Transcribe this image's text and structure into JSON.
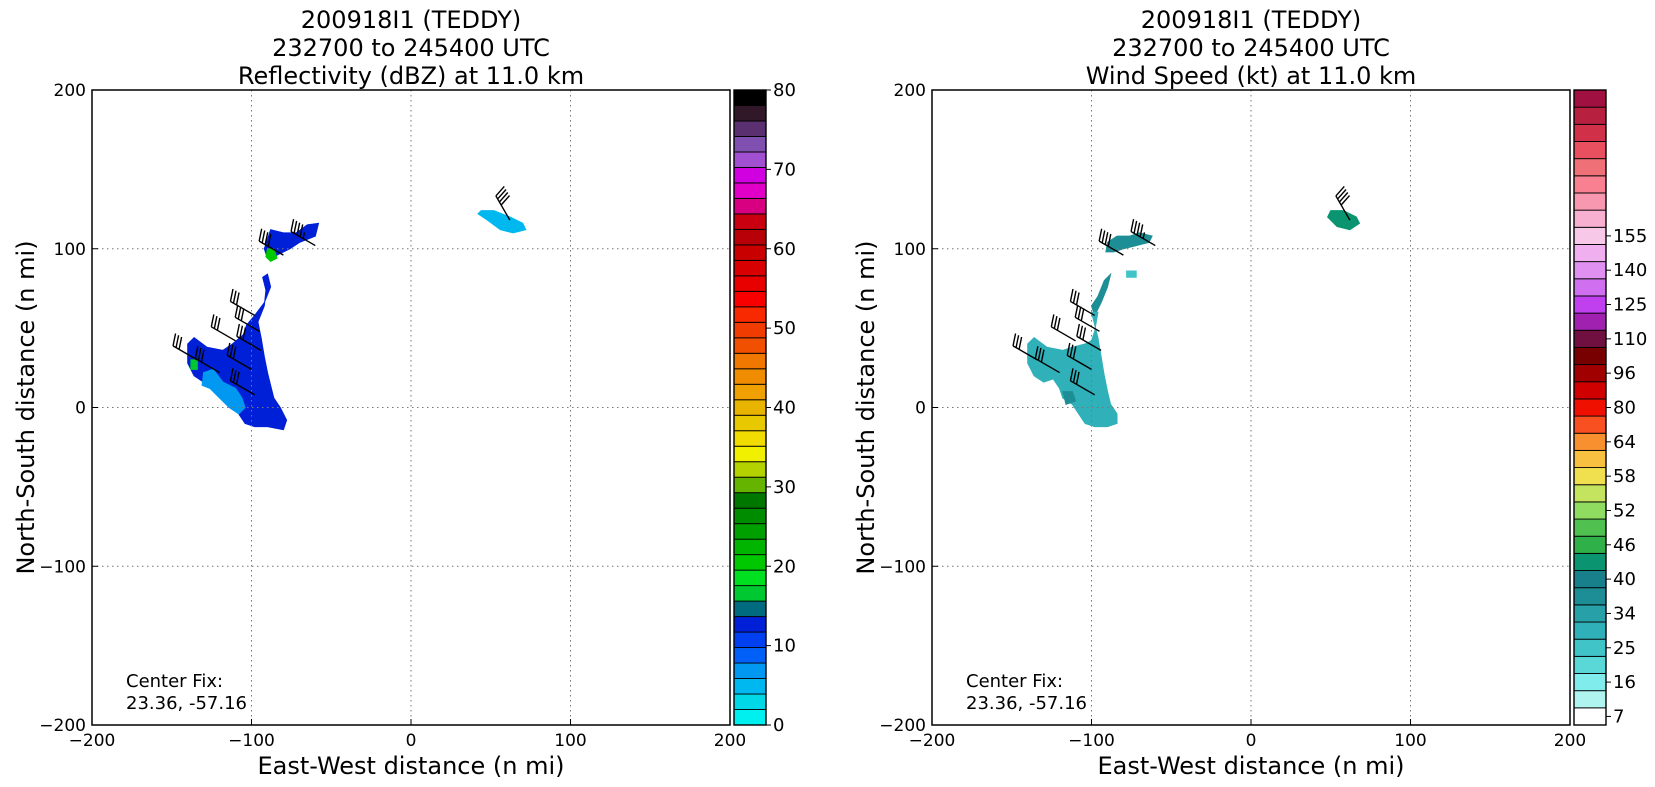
{
  "chart_data": [
    {
      "type": "heatmap",
      "title": [
        "200918I1 (TEDDY)",
        "232700 to 245400 UTC",
        "Reflectivity (dBZ) at 11.0 km"
      ],
      "xlabel": "East-West distance (n mi)",
      "ylabel": "North-South distance (n mi)",
      "xlim": [
        -200,
        200
      ],
      "ylim": [
        -200,
        200
      ],
      "xticks": [
        -200,
        -100,
        0,
        100,
        200
      ],
      "yticks": [
        -200,
        -100,
        0,
        100,
        200
      ],
      "grid": true,
      "annotation": [
        "Center Fix:",
        "23.36, -57.16"
      ],
      "colorbar": {
        "min": 0,
        "max": 80,
        "ticks": [
          0,
          10,
          20,
          30,
          40,
          50,
          60,
          70,
          80
        ],
        "colors": [
          "#00f0f0",
          "#00d8e8",
          "#00b8f0",
          "#0098f0",
          "#0060f8",
          "#0040f0",
          "#0020d8",
          "#006a7e",
          "#00c830",
          "#00e020",
          "#00c800",
          "#00b400",
          "#00a000",
          "#008c00",
          "#007800",
          "#64b400",
          "#b4d200",
          "#f0f000",
          "#f0dc00",
          "#e8c800",
          "#e8b400",
          "#f0a000",
          "#f08c00",
          "#f07800",
          "#f05000",
          "#f03c00",
          "#f82800",
          "#f80000",
          "#e80000",
          "#d80000",
          "#c80000",
          "#b80008",
          "#c80010",
          "#d80080",
          "#e000c8",
          "#d000e0",
          "#a050d0",
          "#8050b0",
          "#5a3070",
          "#301828",
          "#000000"
        ]
      },
      "regions": [
        {
          "points": [
            [
              -88,
              112
            ],
            [
              -80,
              110
            ],
            [
              -72,
              110
            ],
            [
              -65,
              115
            ],
            [
              -58,
              116
            ],
            [
              -60,
              108
            ],
            [
              -70,
              104
            ],
            [
              -76,
              100
            ],
            [
              -84,
              96
            ],
            [
              -90,
              94
            ],
            [
              -92,
              100
            ],
            [
              -90,
              106
            ]
          ],
          "value": 12
        },
        {
          "points": [
            [
              -90,
              100
            ],
            [
              -86,
              100
            ],
            [
              -84,
              94
            ],
            [
              -88,
              92
            ],
            [
              -91,
              95
            ]
          ],
          "value": 20
        },
        {
          "points": [
            [
              -93,
              82
            ],
            [
              -90,
              84
            ],
            [
              -88,
              76
            ],
            [
              -92,
              66
            ],
            [
              -98,
              58
            ],
            [
              -103,
              52
            ],
            [
              -105,
              46
            ],
            [
              -112,
              40
            ],
            [
              -118,
              36
            ],
            [
              -128,
              38
            ],
            [
              -136,
              44
            ],
            [
              -140,
              40
            ],
            [
              -140,
              28
            ],
            [
              -136,
              20
            ],
            [
              -130,
              16
            ],
            [
              -124,
              18
            ],
            [
              -120,
              14
            ],
            [
              -118,
              8
            ],
            [
              -112,
              2
            ],
            [
              -108,
              -4
            ],
            [
              -104,
              -10
            ],
            [
              -98,
              -12
            ],
            [
              -90,
              -12
            ],
            [
              -80,
              -14
            ],
            [
              -78,
              -8
            ],
            [
              -82,
              0
            ],
            [
              -86,
              6
            ],
            [
              -88,
              14
            ],
            [
              -90,
              22
            ],
            [
              -92,
              32
            ],
            [
              -94,
              44
            ],
            [
              -96,
              54
            ],
            [
              -92,
              64
            ],
            [
              -91,
              74
            ]
          ],
          "value": 12
        },
        {
          "points": [
            [
              -130,
              22
            ],
            [
              -124,
              24
            ],
            [
              -118,
              16
            ],
            [
              -110,
              12
            ],
            [
              -106,
              6
            ],
            [
              -104,
              0
            ],
            [
              -108,
              -4
            ],
            [
              -114,
              0
            ],
            [
              -120,
              6
            ],
            [
              -126,
              12
            ],
            [
              -131,
              14
            ]
          ],
          "value": 7
        },
        {
          "points": [
            [
              -138,
              30
            ],
            [
              -134,
              30
            ],
            [
              -134,
              24
            ],
            [
              -138,
              24
            ]
          ],
          "value": 16
        },
        {
          "points": [
            [
              44,
              124
            ],
            [
              52,
              124
            ],
            [
              62,
              120
            ],
            [
              70,
              116
            ],
            [
              72,
              112
            ],
            [
              64,
              110
            ],
            [
              56,
              112
            ],
            [
              48,
              118
            ],
            [
              42,
              122
            ]
          ],
          "value": 5
        }
      ],
      "wind_barbs": [
        {
          "x": -60,
          "y": 102,
          "direction_deg": 300,
          "speed_kt": 45
        },
        {
          "x": -80,
          "y": 96,
          "direction_deg": 300,
          "speed_kt": 40
        },
        {
          "x": 62,
          "y": 118,
          "direction_deg": 330,
          "speed_kt": 40
        },
        {
          "x": -98,
          "y": 58,
          "direction_deg": 300,
          "speed_kt": 30
        },
        {
          "x": -95,
          "y": 48,
          "direction_deg": 300,
          "speed_kt": 30
        },
        {
          "x": -94,
          "y": 36,
          "direction_deg": 300,
          "speed_kt": 30
        },
        {
          "x": -110,
          "y": 42,
          "direction_deg": 300,
          "speed_kt": 30
        },
        {
          "x": -100,
          "y": 24,
          "direction_deg": 300,
          "speed_kt": 30
        },
        {
          "x": -134,
          "y": 30,
          "direction_deg": 300,
          "speed_kt": 30
        },
        {
          "x": -120,
          "y": 22,
          "direction_deg": 300,
          "speed_kt": 30
        },
        {
          "x": -98,
          "y": 8,
          "direction_deg": 300,
          "speed_kt": 30
        }
      ]
    },
    {
      "type": "heatmap",
      "title": [
        "200918I1 (TEDDY)",
        "232700 to 245400 UTC",
        "Wind Speed (kt) at 11.0 km"
      ],
      "xlabel": "East-West distance (n mi)",
      "ylabel": "North-South distance (n mi)",
      "xlim": [
        -200,
        200
      ],
      "ylim": [
        -200,
        200
      ],
      "xticks": [
        -200,
        -100,
        0,
        100,
        200
      ],
      "yticks": [
        -200,
        -100,
        0,
        100,
        200
      ],
      "grid": true,
      "annotation": [
        "Center Fix:",
        "23.36, -57.16"
      ],
      "colorbar": {
        "min": 4,
        "max": 160,
        "ticks": [
          7,
          16,
          25,
          34,
          40,
          46,
          52,
          58,
          64,
          80,
          96,
          110,
          125,
          140,
          155
        ],
        "tick_levels": [
          4,
          10,
          13,
          22,
          28,
          31,
          37,
          43,
          49,
          55,
          61,
          67,
          72,
          88,
          104,
          118,
          133,
          148,
          160
        ],
        "colors": [
          "#ffffff",
          "#b0f4f0",
          "#80ecec",
          "#5ad8d8",
          "#40c4c8",
          "#30b0b8",
          "#28a0a8",
          "#1e8e96",
          "#18808a",
          "#0a9470",
          "#30b048",
          "#50c050",
          "#90dc60",
          "#c4e460",
          "#f0e050",
          "#f8c040",
          "#f89030",
          "#f85020",
          "#f01000",
          "#d00000",
          "#a00000",
          "#780000",
          "#701040",
          "#a020b0",
          "#c040f0",
          "#d070f0",
          "#e090f0",
          "#f0b0f0",
          "#f8c8e8",
          "#f8b0d0",
          "#f898b0",
          "#f88090",
          "#f07078",
          "#e85060",
          "#d03048",
          "#b82040",
          "#a01040"
        ]
      },
      "regions": [
        {
          "points": [
            [
              -90,
              104
            ],
            [
              -84,
              108
            ],
            [
              -76,
              108
            ],
            [
              -70,
              110
            ],
            [
              -62,
              108
            ],
            [
              -64,
              104
            ],
            [
              -72,
              102
            ],
            [
              -80,
              100
            ],
            [
              -86,
              98
            ],
            [
              -91,
              98
            ]
          ],
          "value": 37
        },
        {
          "points": [
            [
              -78,
              86
            ],
            [
              -72,
              86
            ],
            [
              -72,
              82
            ],
            [
              -78,
              82
            ]
          ],
          "value": 25
        },
        {
          "points": [
            [
              -96,
              70
            ],
            [
              -92,
              80
            ],
            [
              -88,
              84
            ],
            [
              -90,
              76
            ],
            [
              -94,
              66
            ],
            [
              -98,
              58
            ],
            [
              -100,
              64
            ]
          ],
          "value": 37
        },
        {
          "points": [
            [
              -100,
              60
            ],
            [
              -96,
              60
            ],
            [
              -98,
              48
            ],
            [
              -100,
              42
            ],
            [
              -104,
              40
            ],
            [
              -112,
              38
            ],
            [
              -118,
              36
            ],
            [
              -128,
              38
            ],
            [
              -136,
              44
            ],
            [
              -140,
              40
            ],
            [
              -140,
              28
            ],
            [
              -136,
              20
            ],
            [
              -130,
              16
            ],
            [
              -124,
              18
            ],
            [
              -120,
              12
            ],
            [
              -118,
              6
            ],
            [
              -112,
              2
            ],
            [
              -108,
              -4
            ],
            [
              -104,
              -10
            ],
            [
              -98,
              -12
            ],
            [
              -90,
              -12
            ],
            [
              -84,
              -10
            ],
            [
              -84,
              -4
            ],
            [
              -88,
              2
            ],
            [
              -90,
              10
            ],
            [
              -92,
              20
            ],
            [
              -94,
              32
            ],
            [
              -96,
              44
            ],
            [
              -98,
              52
            ]
          ],
          "value": 28
        },
        {
          "points": [
            [
              -118,
              10
            ],
            [
              -112,
              10
            ],
            [
              -110,
              4
            ],
            [
              -116,
              2
            ]
          ],
          "value": 34
        },
        {
          "points": [
            [
              50,
              124
            ],
            [
              58,
              124
            ],
            [
              66,
              120
            ],
            [
              68,
              116
            ],
            [
              62,
              112
            ],
            [
              54,
              114
            ],
            [
              48,
              120
            ]
          ],
          "value": 42
        }
      ],
      "wind_barbs": [
        {
          "x": -60,
          "y": 102,
          "direction_deg": 300,
          "speed_kt": 45
        },
        {
          "x": -80,
          "y": 96,
          "direction_deg": 300,
          "speed_kt": 40
        },
        {
          "x": 62,
          "y": 118,
          "direction_deg": 330,
          "speed_kt": 40
        },
        {
          "x": -98,
          "y": 58,
          "direction_deg": 300,
          "speed_kt": 30
        },
        {
          "x": -95,
          "y": 48,
          "direction_deg": 300,
          "speed_kt": 30
        },
        {
          "x": -94,
          "y": 36,
          "direction_deg": 300,
          "speed_kt": 30
        },
        {
          "x": -110,
          "y": 42,
          "direction_deg": 300,
          "speed_kt": 30
        },
        {
          "x": -100,
          "y": 24,
          "direction_deg": 300,
          "speed_kt": 30
        },
        {
          "x": -134,
          "y": 30,
          "direction_deg": 300,
          "speed_kt": 30
        },
        {
          "x": -120,
          "y": 22,
          "direction_deg": 300,
          "speed_kt": 30
        },
        {
          "x": -98,
          "y": 8,
          "direction_deg": 300,
          "speed_kt": 30
        }
      ]
    }
  ]
}
